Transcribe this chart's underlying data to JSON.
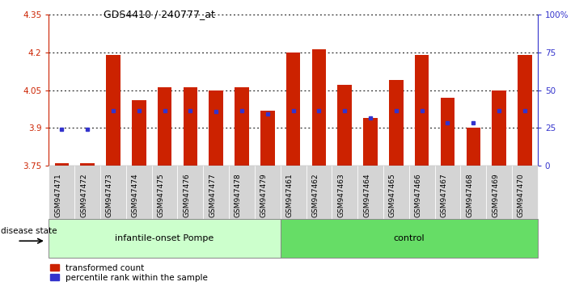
{
  "title": "GDS4410 / 240777_at",
  "samples": [
    "GSM947471",
    "GSM947472",
    "GSM947473",
    "GSM947474",
    "GSM947475",
    "GSM947476",
    "GSM947477",
    "GSM947478",
    "GSM947479",
    "GSM947461",
    "GSM947462",
    "GSM947463",
    "GSM947464",
    "GSM947465",
    "GSM947466",
    "GSM947467",
    "GSM947468",
    "GSM947469",
    "GSM947470"
  ],
  "red_values": [
    3.76,
    3.76,
    4.19,
    4.01,
    4.06,
    4.06,
    4.05,
    4.06,
    3.97,
    4.2,
    4.21,
    4.07,
    3.94,
    4.09,
    4.19,
    4.02,
    3.9,
    4.05,
    4.19
  ],
  "blue_values": [
    3.895,
    3.895,
    3.97,
    3.97,
    3.97,
    3.97,
    3.965,
    3.97,
    3.957,
    3.968,
    3.97,
    3.968,
    3.94,
    3.968,
    3.968,
    3.922,
    3.922,
    3.968,
    3.97
  ],
  "ylim_left": [
    3.75,
    4.35
  ],
  "ylim_right": [
    0,
    100
  ],
  "yticks_left": [
    3.75,
    3.9,
    4.05,
    4.2,
    4.35
  ],
  "yticks_right": [
    0,
    25,
    50,
    75,
    100
  ],
  "ytick_labels_left": [
    "3.75",
    "3.9",
    "4.05",
    "4.2",
    "4.35"
  ],
  "ytick_labels_right": [
    "0",
    "25",
    "50",
    "75",
    "100%"
  ],
  "group1_label": "infantile-onset Pompe",
  "group2_label": "control",
  "group1_color": "#ccffcc",
  "group2_color": "#66dd66",
  "bar_color": "#cc2200",
  "blue_color": "#3333cc",
  "legend_red": "transformed count",
  "legend_blue": "percentile rank within the sample",
  "disease_state_label": "disease state",
  "group1_count": 9,
  "group2_count": 10,
  "bar_width": 0.55,
  "xtick_bg": "#d4d4d4"
}
